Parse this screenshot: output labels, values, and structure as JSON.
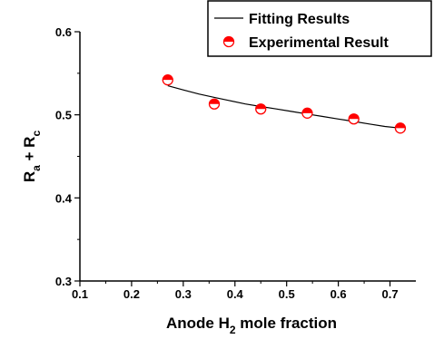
{
  "chart_data": {
    "type": "scatter",
    "xlabel": {
      "main": "Anode H",
      "sub": "2",
      "rest": " mole fraction"
    },
    "ylabel": {
      "a": "R",
      "a_sub": "a",
      "mid": " + R",
      "b_sub": "c"
    },
    "xlim": [
      0.1,
      0.75
    ],
    "ylim": [
      0.3,
      0.6
    ],
    "x_ticks": [
      "0.1",
      "0.2",
      "0.3",
      "0.4",
      "0.5",
      "0.6",
      "0.7"
    ],
    "y_ticks": [
      "0.3",
      "0.4",
      "0.5",
      "0.6"
    ],
    "grid": false,
    "legend_position": "top-right",
    "series": [
      {
        "name": "Fitting Results",
        "kind": "line",
        "color": "#000000",
        "x": [
          0.27,
          0.3,
          0.33,
          0.36,
          0.39,
          0.42,
          0.45,
          0.48,
          0.51,
          0.54,
          0.57,
          0.6,
          0.63,
          0.66,
          0.69,
          0.72
        ],
        "y": [
          0.535,
          0.53,
          0.525,
          0.521,
          0.517,
          0.513,
          0.51,
          0.507,
          0.504,
          0.501,
          0.498,
          0.495,
          0.492,
          0.489,
          0.486,
          0.484
        ]
      },
      {
        "name": "Experimental Result",
        "kind": "marker",
        "color": "#ff0000",
        "x": [
          0.27,
          0.36,
          0.45,
          0.54,
          0.63,
          0.72
        ],
        "y": [
          0.542,
          0.513,
          0.507,
          0.502,
          0.495,
          0.484
        ]
      }
    ]
  }
}
